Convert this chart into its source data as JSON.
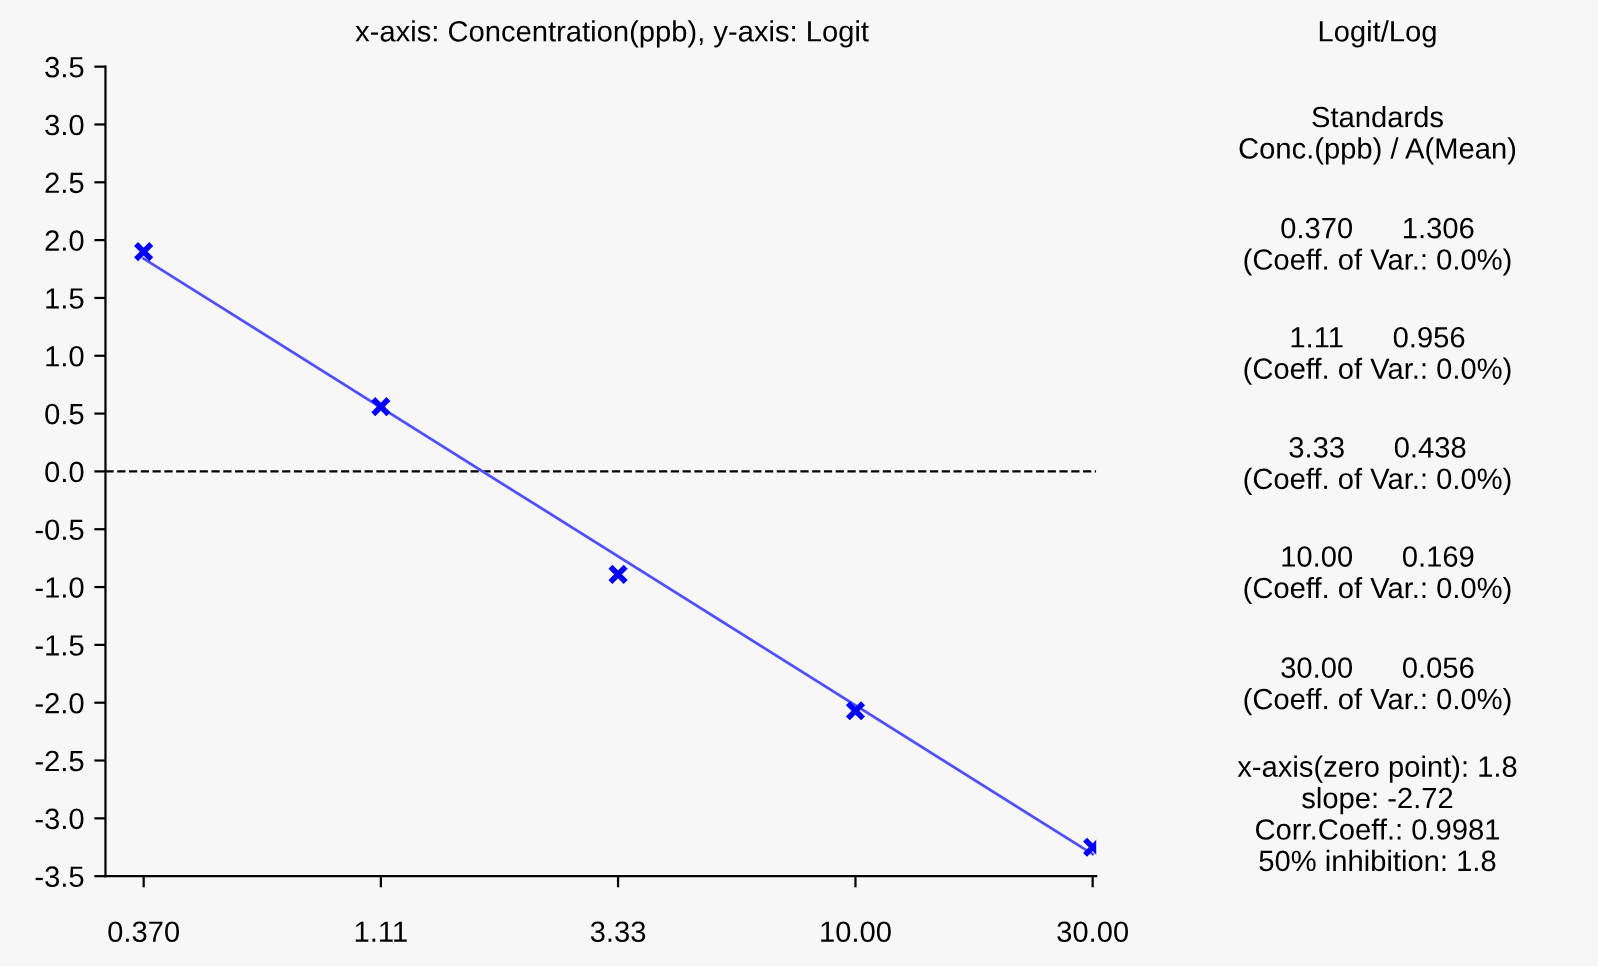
{
  "chart_data": {
    "type": "scatter",
    "title": "x-axis: Concentration(ppb), y-axis: Logit",
    "series": [
      {
        "color": "#0000ff",
        "marker": "cross",
        "x": [
          0.37,
          1.11,
          3.33,
          10,
          30
        ],
        "values": [
          1.9,
          0.56,
          -0.89,
          -2.07,
          -3.25
        ]
      },
      {
        "type": "line",
        "color": "#5050ff",
        "marker": "none",
        "line_style": "solid",
        "x": [
          0.37,
          30
        ],
        "values": [
          1.84,
          -3.31
        ]
      }
    ],
    "log": "x",
    "xlim": [
      0.31,
      30.5
    ],
    "xticks": [
      {
        "value": 0.37,
        "label": "0.370"
      },
      1.11,
      3.33,
      {
        "value": 10,
        "label": "10.00"
      },
      {
        "value": 30,
        "label": "30.00"
      }
    ],
    "ylim": [
      -3.5,
      3.5
    ],
    "yticks": [
      {
        "value": 3.5,
        "label": "3.5"
      },
      {
        "value": 3.0,
        "label": "3.0"
      },
      {
        "value": 2.5,
        "label": "2.5"
      },
      {
        "value": 2.0,
        "label": "2.0"
      },
      {
        "value": 1.5,
        "label": "1.5"
      },
      {
        "value": 1.0,
        "label": "1.0"
      },
      {
        "value": 0.5,
        "label": "0.5"
      },
      {
        "value": 0.0,
        "label": "0.0"
      },
      {
        "value": -0.5,
        "label": "-0.5"
      },
      {
        "value": -1.0,
        "label": "-1.0"
      },
      {
        "value": -1.5,
        "label": "-1.5"
      },
      {
        "value": -2.0,
        "label": "-2.0"
      },
      {
        "value": -2.5,
        "label": "-2.5"
      },
      {
        "value": -3.0,
        "label": "-3.0"
      },
      {
        "value": -3.5,
        "label": "-3.5"
      }
    ],
    "ref_lines": [
      {
        "axis": "y",
        "value": 0,
        "color": "#000000",
        "line_style": "dashed"
      }
    ],
    "grid": false,
    "legend": false,
    "annotations": [
      "Logit/Log",
      "Standards\nConc.(ppb) / A(Mean)",
      "0.370      1.306\n(Coeff. of Var.: 0.0%)",
      "1.11      0.956\n(Coeff. of Var.: 0.0%)",
      "3.33      0.438\n(Coeff. of Var.: 0.0%)",
      "10.00      0.169\n(Coeff. of Var.: 0.0%)",
      "30.00      0.056\n(Coeff. of Var.: 0.0%)",
      "x-axis(zero point): 1.8\nslope: -2.72\nCorr.Coeff.: 0.9981\n50% inhibition: 1.8"
    ]
  }
}
